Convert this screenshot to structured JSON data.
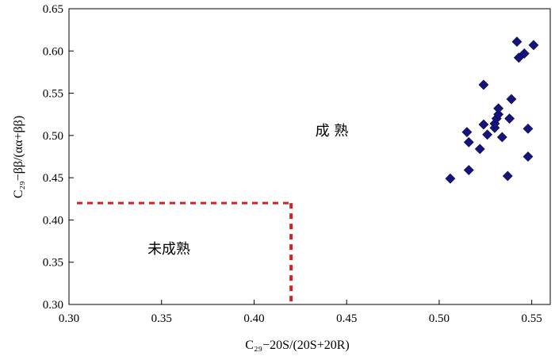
{
  "chart_data": {
    "type": "scatter",
    "xlabel": "C₂₉−20S/(20S+20R)",
    "ylabel": "C₂₉−ββ/(αα+ββ)",
    "xlim": [
      0.3,
      0.56
    ],
    "ylim": [
      0.3,
      0.65
    ],
    "x_ticks": [
      0.3,
      0.35,
      0.4,
      0.45,
      0.5,
      0.55
    ],
    "y_ticks": [
      0.3,
      0.35,
      0.4,
      0.45,
      0.5,
      0.55,
      0.6,
      0.65
    ],
    "x_tick_labels": [
      "0.30",
      "0.35",
      "0.40",
      "0.45",
      "0.50",
      "0.55"
    ],
    "y_tick_labels": [
      "0.30",
      "0.35",
      "0.40",
      "0.45",
      "0.50",
      "0.55",
      "0.60",
      "0.65"
    ],
    "grid": false,
    "marker": "diamond",
    "marker_color": "#14147a",
    "threshold_color": "#d62020",
    "threshold": {
      "x": 0.42,
      "y": 0.42
    },
    "points": [
      {
        "x": 0.506,
        "y": 0.449
      },
      {
        "x": 0.515,
        "y": 0.504
      },
      {
        "x": 0.516,
        "y": 0.492
      },
      {
        "x": 0.516,
        "y": 0.459
      },
      {
        "x": 0.522,
        "y": 0.484
      },
      {
        "x": 0.524,
        "y": 0.513
      },
      {
        "x": 0.524,
        "y": 0.56
      },
      {
        "x": 0.526,
        "y": 0.501
      },
      {
        "x": 0.53,
        "y": 0.509
      },
      {
        "x": 0.53,
        "y": 0.514
      },
      {
        "x": 0.531,
        "y": 0.52
      },
      {
        "x": 0.532,
        "y": 0.525
      },
      {
        "x": 0.532,
        "y": 0.532
      },
      {
        "x": 0.534,
        "y": 0.498
      },
      {
        "x": 0.537,
        "y": 0.452
      },
      {
        "x": 0.538,
        "y": 0.52
      },
      {
        "x": 0.539,
        "y": 0.543
      },
      {
        "x": 0.542,
        "y": 0.611
      },
      {
        "x": 0.543,
        "y": 0.592
      },
      {
        "x": 0.546,
        "y": 0.597
      },
      {
        "x": 0.548,
        "y": 0.508
      },
      {
        "x": 0.548,
        "y": 0.475
      },
      {
        "x": 0.551,
        "y": 0.607
      }
    ],
    "annotations": [
      {
        "text": "成  熟",
        "x": 0.442,
        "y": 0.5
      },
      {
        "text": "未成熟",
        "x": 0.354,
        "y": 0.36
      }
    ]
  }
}
